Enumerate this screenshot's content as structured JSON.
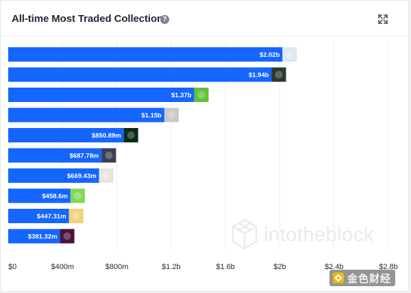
{
  "header": {
    "title": "All-time Most Traded Collections",
    "help_icon": "question-circle-icon",
    "expand_icon": "expand-arrows-icon"
  },
  "chart_data": {
    "type": "bar",
    "orientation": "horizontal",
    "title": "All-time Most Traded Collections",
    "xlabel": "",
    "ylabel": "",
    "xlim": [
      0,
      2800000000
    ],
    "grid": true,
    "legend": "none",
    "bar_color": "#1565ff",
    "x_ticks": [
      "$0",
      "$400m",
      "$800m",
      "$1.2b",
      "$1.6b",
      "$2b",
      "$2.4b",
      "$2.8b"
    ],
    "values": [
      2020000000,
      1940000000,
      1370000000,
      1150000000,
      850890000,
      687780000,
      669430000,
      458600000,
      447310000,
      381320000
    ],
    "labels": [
      "$2.02b",
      "$1.94b",
      "$1.37b",
      "$1.15b",
      "$850.89m",
      "$687.78m",
      "$669.43m",
      "$458.6m",
      "$447.31m",
      "$381.32m"
    ],
    "thumb_colors": [
      "#dce8f4",
      "#2b3a2a",
      "#5fc23a",
      "#c9c9c9",
      "#0d2a16",
      "#3a3f55",
      "#e8e4de",
      "#7ed957",
      "#f4d27a",
      "#4a1238"
    ]
  },
  "watermark": {
    "text": "intotheblock"
  },
  "corner_badge": {
    "text": "金色财经"
  }
}
